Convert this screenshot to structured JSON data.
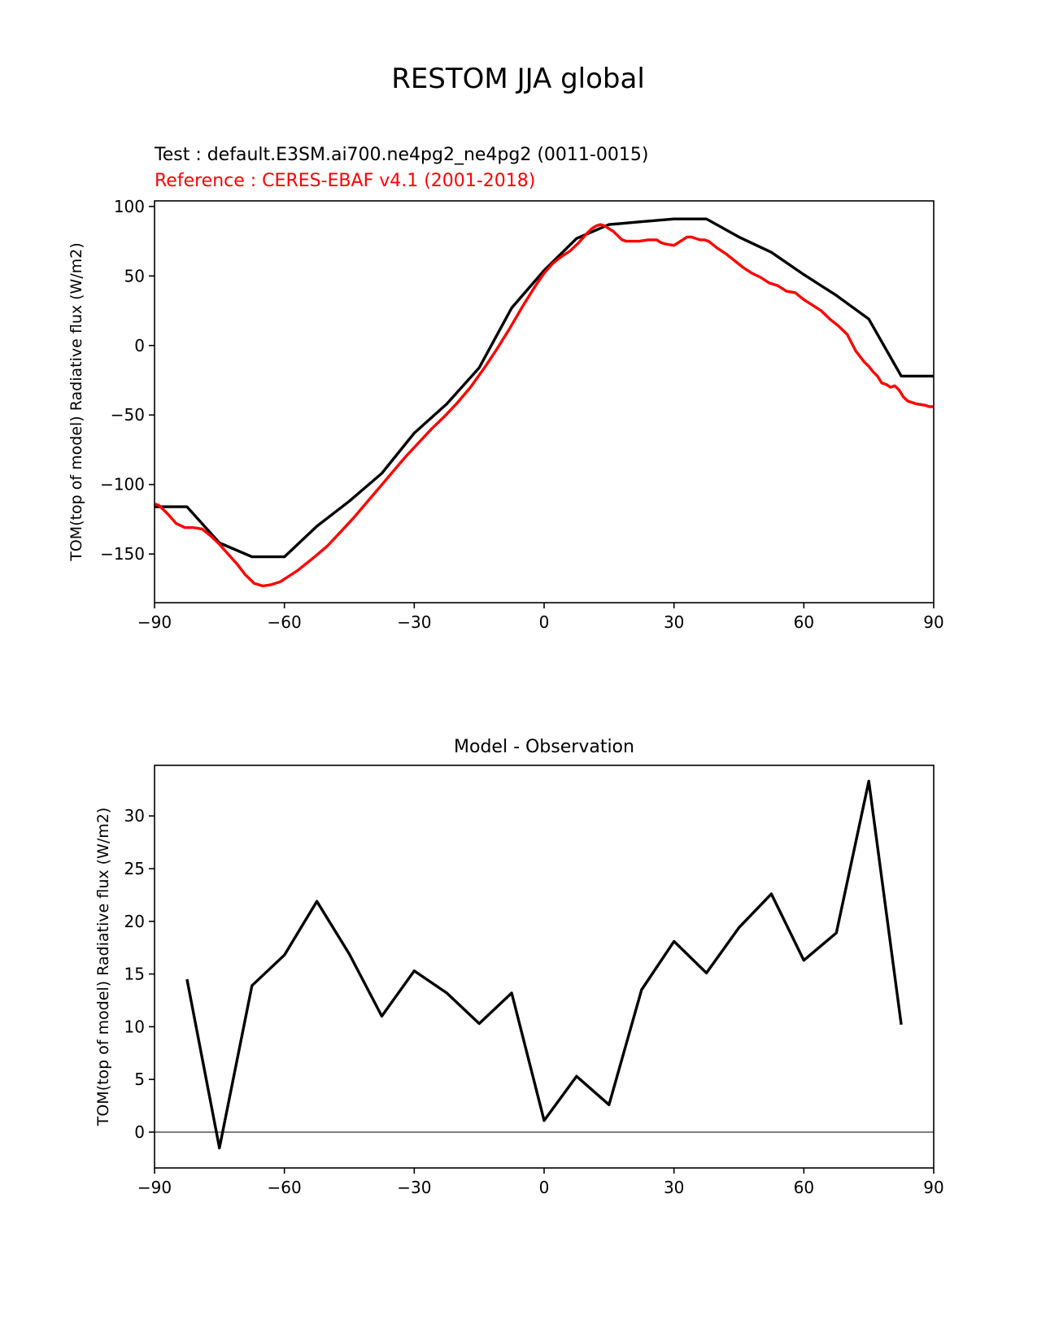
{
  "figure": {
    "title": "RESTOM JJA global",
    "test_label": "Test : default.E3SM.ai700.ne4pg2_ne4pg2 (0011-0015)",
    "reference_label": "Reference : CERES-EBAF v4.1 (2001-2018)",
    "colors": {
      "test": "#000000",
      "reference": "#ff0000",
      "zero_line": "#808080"
    }
  },
  "chart_data": [
    {
      "type": "line",
      "title": "",
      "xlabel": "",
      "ylabel": "TOM(top of model) Radiative flux (W/m2)",
      "xlim": [
        -90,
        90
      ],
      "ylim": [
        -185,
        104
      ],
      "xticks": [
        "−90",
        "−60",
        "−30",
        "0",
        "30",
        "60",
        "90"
      ],
      "xtick_values": [
        -90,
        -60,
        -30,
        0,
        30,
        60,
        90
      ],
      "yticks": [
        "100",
        "50",
        "0",
        "−50",
        "−100",
        "−150"
      ],
      "ytick_values": [
        100,
        50,
        0,
        -50,
        -100,
        -150
      ],
      "grid": false,
      "series": [
        {
          "name": "Test : default.E3SM.ai700.ne4pg2_ne4pg2 (0011-0015)",
          "color": "#000000",
          "x": [
            -90,
            -82.5,
            -75,
            -67.5,
            -60,
            -52.5,
            -45,
            -37.5,
            -30,
            -22.5,
            -15,
            -7.5,
            0,
            7.5,
            15,
            22.5,
            30,
            37.5,
            45,
            52.5,
            60,
            67.5,
            75,
            82.5,
            90
          ],
          "y": [
            -116,
            -116,
            -142,
            -152,
            -152,
            -130,
            -112,
            -92,
            -63,
            -42,
            -16,
            27,
            54,
            77,
            87,
            89,
            91,
            91,
            78,
            67,
            51,
            36,
            19,
            -22,
            -22
          ]
        },
        {
          "name": "Reference : CERES-EBAF v4.1 (2001-2018)",
          "color": "#ff0000",
          "x": [
            -90,
            -89,
            -87,
            -85,
            -83,
            -81,
            -79,
            -77,
            -75,
            -73,
            -71,
            -69,
            -67,
            -65,
            -63,
            -61,
            -59,
            -57,
            -55,
            -53,
            -50,
            -47,
            -44,
            -41,
            -38,
            -35,
            -32,
            -29,
            -26,
            -23,
            -20,
            -17,
            -14,
            -11,
            -8,
            -5,
            -2,
            0,
            2,
            4,
            6,
            8,
            10,
            11,
            12,
            13,
            14,
            15,
            16,
            17,
            18,
            19,
            20,
            22,
            24,
            26,
            27,
            28,
            30,
            31,
            32,
            33,
            34,
            35,
            36,
            37,
            38,
            40,
            42,
            44,
            46,
            48,
            50,
            52,
            54,
            56,
            58,
            60,
            62,
            64,
            66,
            68,
            70,
            71,
            72,
            73,
            74,
            75,
            76,
            77,
            78,
            79,
            80,
            81,
            82,
            83,
            84,
            86,
            88,
            89,
            90
          ],
          "y": [
            -114,
            -115,
            -121,
            -128,
            -131,
            -131,
            -132,
            -137,
            -143,
            -150,
            -157,
            -165,
            -171,
            -173,
            -172,
            -170,
            -166,
            -162,
            -157,
            -152,
            -144,
            -134,
            -124,
            -113,
            -102,
            -91,
            -80,
            -70,
            -60,
            -51,
            -41,
            -30,
            -17,
            -3,
            12,
            28,
            43,
            52,
            59,
            64,
            68,
            74,
            81,
            84,
            86,
            87,
            86,
            84,
            82,
            79,
            76,
            75,
            75,
            75,
            76,
            76,
            74,
            73,
            72,
            74,
            76,
            78,
            78,
            77,
            76,
            76,
            75,
            70,
            66,
            61,
            56,
            52,
            49,
            45,
            43,
            39,
            38,
            33,
            29,
            25,
            19,
            14,
            8,
            2,
            -4,
            -8,
            -12,
            -15,
            -19,
            -22,
            -27,
            -28,
            -30,
            -29,
            -32,
            -37,
            -40,
            -42,
            -43,
            -44,
            -44
          ]
        }
      ]
    },
    {
      "type": "line",
      "title": "Model - Observation",
      "xlabel": "",
      "ylabel": "TOM(top of model) Radiative flux (W/m2)",
      "xlim": [
        -90,
        90
      ],
      "ylim": [
        -3.4,
        34.8
      ],
      "xticks": [
        "−90",
        "−60",
        "−30",
        "0",
        "30",
        "60",
        "90"
      ],
      "xtick_values": [
        -90,
        -60,
        -30,
        0,
        30,
        60,
        90
      ],
      "yticks": [
        "30",
        "25",
        "20",
        "15",
        "10",
        "5",
        "0"
      ],
      "ytick_values": [
        30,
        25,
        20,
        15,
        10,
        5,
        0
      ],
      "grid": false,
      "zero_line": {
        "y": 0,
        "color": "#808080"
      },
      "series": [
        {
          "color": "#000000",
          "x": [
            -82.5,
            -75,
            -67.5,
            -60,
            -52.5,
            -45,
            -37.5,
            -30,
            -22.5,
            -15,
            -7.5,
            0,
            7.5,
            15,
            22.5,
            30,
            37.5,
            45,
            52.5,
            60,
            67.5,
            75,
            82.5
          ],
          "y": [
            14.5,
            -1.5,
            13.9,
            16.8,
            21.9,
            16.9,
            11.0,
            15.3,
            13.2,
            10.3,
            13.2,
            1.1,
            5.3,
            2.6,
            13.5,
            18.1,
            15.1,
            19.4,
            22.6,
            16.3,
            18.9,
            33.3,
            10.2
          ]
        }
      ]
    }
  ]
}
